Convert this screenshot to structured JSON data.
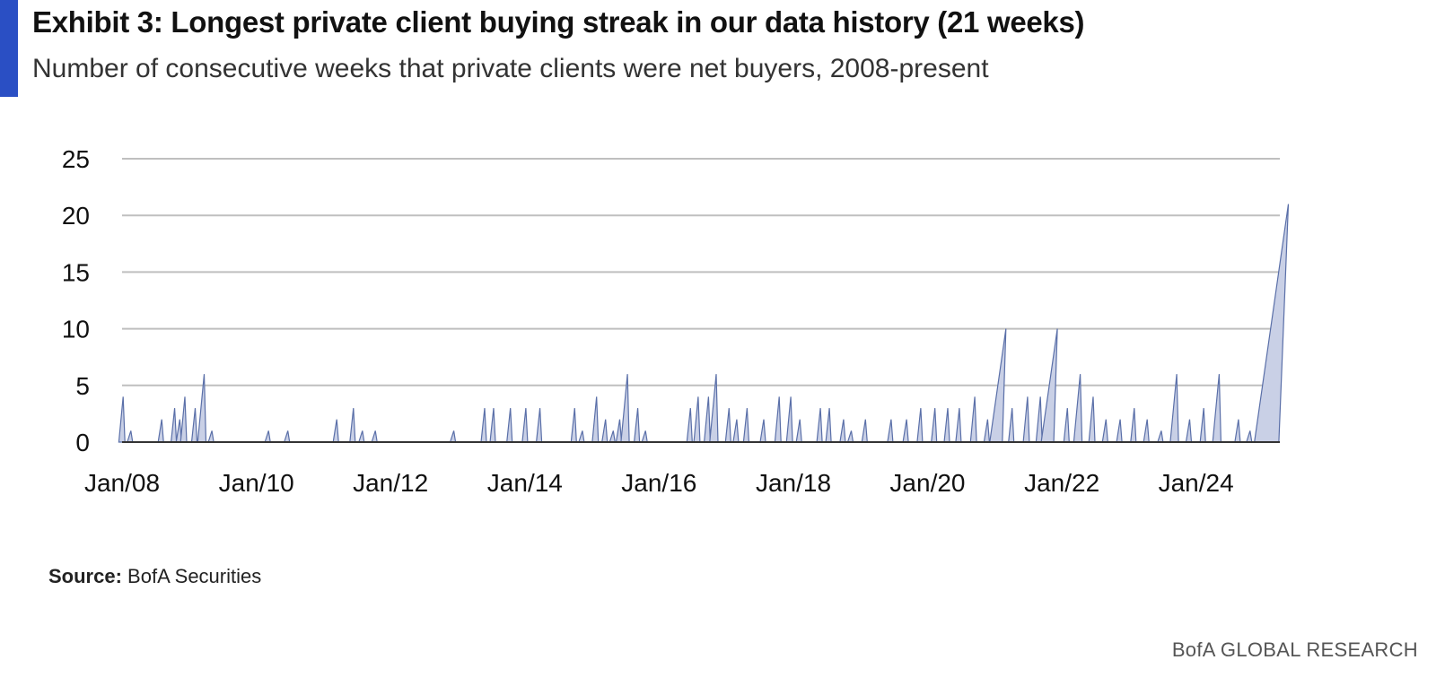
{
  "header": {
    "title": "Exhibit 3: Longest private client buying streak in our data history (21 weeks)",
    "subtitle": "Number of consecutive weeks that private clients were net buyers, 2008-present"
  },
  "footer": {
    "source_label": "Source:",
    "source_value": "BofA Securities",
    "brand": "BofA GLOBAL RESEARCH"
  },
  "colors": {
    "accent": "#2a4fc4",
    "series": "#5a6fa8",
    "series_fill": "#c9d0e6",
    "grid": "#bfbfbf"
  },
  "chart_data": {
    "type": "area",
    "title": "Exhibit 3: Longest private client buying streak in our data history (21 weeks)",
    "subtitle": "Number of consecutive weeks that private clients were net buyers, 2008-present",
    "xlabel": "",
    "ylabel": "",
    "x_range": [
      "2008-01",
      "2025-04"
    ],
    "ylim": [
      0,
      25
    ],
    "yticks": [
      0,
      5,
      10,
      15,
      20,
      25
    ],
    "xtick_labels": [
      "Jan/08",
      "Jan/10",
      "Jan/12",
      "Jan/14",
      "Jan/16",
      "Jan/18",
      "Jan/20",
      "Jan/22",
      "Jan/24"
    ],
    "grid": "horizontal",
    "legend": "none",
    "series": [
      {
        "x": [
          "2008-01-07",
          "2008-02-18",
          "2008-08-04",
          "2008-10-13",
          "2008-11-10",
          "2008-12-08",
          "2009-02-02",
          "2009-03-23",
          "2009-05-04",
          "2010-03-08",
          "2010-06-21",
          "2011-03-14",
          "2011-06-13",
          "2011-08-01",
          "2011-10-10",
          "2012-12-10",
          "2013-05-27",
          "2013-07-15",
          "2013-10-14",
          "2014-01-06",
          "2014-03-24",
          "2014-09-29",
          "2014-11-10",
          "2015-01-26",
          "2015-03-16",
          "2015-04-27",
          "2015-06-01",
          "2015-07-13",
          "2015-09-07",
          "2015-10-19",
          "2016-06-20",
          "2016-08-01",
          "2016-09-26",
          "2016-11-07",
          "2017-01-16",
          "2017-02-27",
          "2017-04-24",
          "2017-07-24",
          "2017-10-16",
          "2017-12-18",
          "2018-02-05",
          "2018-05-28",
          "2018-07-16",
          "2018-10-01",
          "2018-11-12",
          "2019-01-28",
          "2019-06-17",
          "2019-09-09",
          "2019-11-25",
          "2020-02-10",
          "2020-04-20",
          "2020-06-22",
          "2020-09-14",
          "2020-11-23",
          "2021-02-01",
          "2021-04-05",
          "2021-06-28",
          "2021-09-06",
          "2021-11-08",
          "2022-01-31",
          "2022-04-11",
          "2022-06-20",
          "2022-08-29",
          "2022-11-14",
          "2023-01-30",
          "2023-04-10",
          "2023-06-26",
          "2023-09-18",
          "2023-11-27",
          "2024-02-12",
          "2024-05-06",
          "2024-08-19",
          "2024-10-21",
          "2025-03-17"
        ],
        "y": [
          4,
          1,
          2,
          3,
          2,
          4,
          3,
          6,
          1,
          1,
          1,
          2,
          3,
          1,
          1,
          1,
          3,
          3,
          3,
          3,
          3,
          3,
          1,
          4,
          2,
          1,
          2,
          6,
          3,
          1,
          3,
          4,
          4,
          6,
          3,
          2,
          3,
          2,
          4,
          4,
          2,
          3,
          3,
          2,
          1,
          2,
          2,
          2,
          3,
          3,
          3,
          3,
          4,
          2,
          10,
          3,
          4,
          4,
          10,
          3,
          6,
          4,
          2,
          2,
          3,
          2,
          1,
          6,
          2,
          3,
          6,
          2,
          1,
          21
        ]
      }
    ]
  }
}
